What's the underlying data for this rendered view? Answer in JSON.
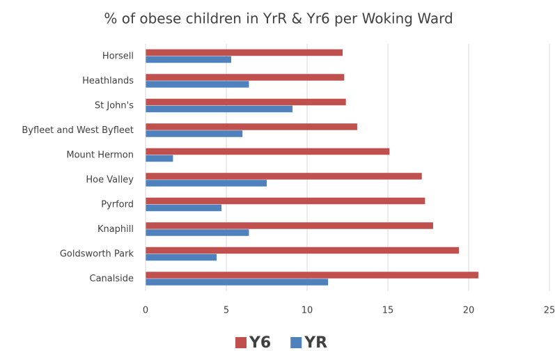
{
  "chart_data": {
    "type": "hbar",
    "title": "% of obese children in YrR & Yr6 per Woking Ward",
    "categories": [
      "Horsell",
      "Heathlands",
      "St John's",
      "Byfleet and West Byfleet",
      "Mount Hermon",
      "Hoe Valley",
      "Pyrford",
      "Knaphill",
      "Goldsworth Park",
      "Canalside"
    ],
    "series": [
      {
        "name": "Y6",
        "color": "#c0504d",
        "values": [
          12.2,
          12.3,
          12.4,
          13.1,
          15.1,
          17.1,
          17.3,
          17.8,
          19.4,
          20.6
        ]
      },
      {
        "name": "YR",
        "color": "#4f81bd",
        "values": [
          5.3,
          6.4,
          9.1,
          6.0,
          1.7,
          7.5,
          4.7,
          6.4,
          4.4,
          11.3
        ]
      }
    ],
    "xlim": [
      0,
      25
    ],
    "xticks": [
      0,
      5,
      10,
      15,
      20,
      25
    ],
    "grid": true,
    "legend": "bottom"
  }
}
